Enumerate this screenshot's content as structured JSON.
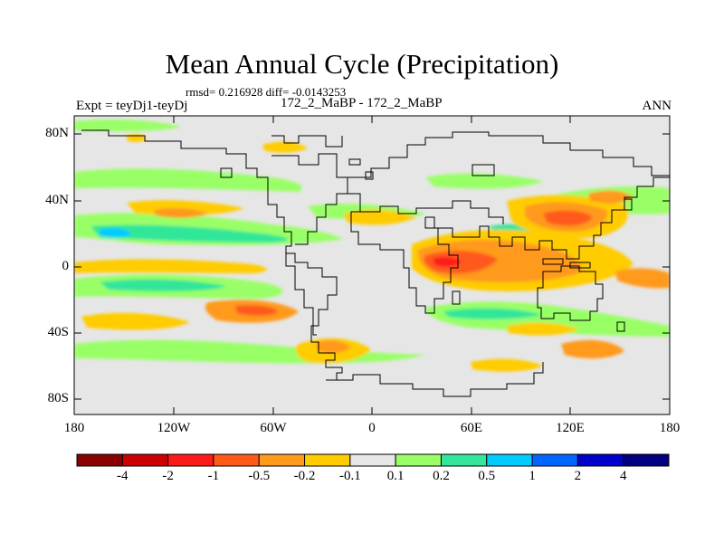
{
  "title": "Mean Annual Cycle (Precipitation)",
  "rmsd_line": "rmsd= 0.216928 diff= -0.0143253",
  "experiment": "Expt = teyDj1-teyDj",
  "comparison": "172_2_MaBP - 172_2_MaBP",
  "season": "ANN",
  "lat_ticks": [
    "80N",
    "40N",
    "0",
    "40S",
    "80S"
  ],
  "lon_ticks": [
    "180",
    "120W",
    "60W",
    "0",
    "60E",
    "120E",
    "180"
  ],
  "colorbar": {
    "labels": [
      "-4",
      "-2",
      "-1",
      "-0.5",
      "-0.2",
      "-0.1",
      "0.1",
      "0.2",
      "0.5",
      "1",
      "2",
      "4"
    ],
    "colors": [
      "#8b0000",
      "#cc0000",
      "#ff1a1a",
      "#ff5a1a",
      "#ff9a1a",
      "#ffcc00",
      "#e6e6e6",
      "#99ff66",
      "#33e699",
      "#00ccff",
      "#0066ff",
      "#0000cc",
      "#000080"
    ]
  },
  "land_color": "#e6e6e6"
}
